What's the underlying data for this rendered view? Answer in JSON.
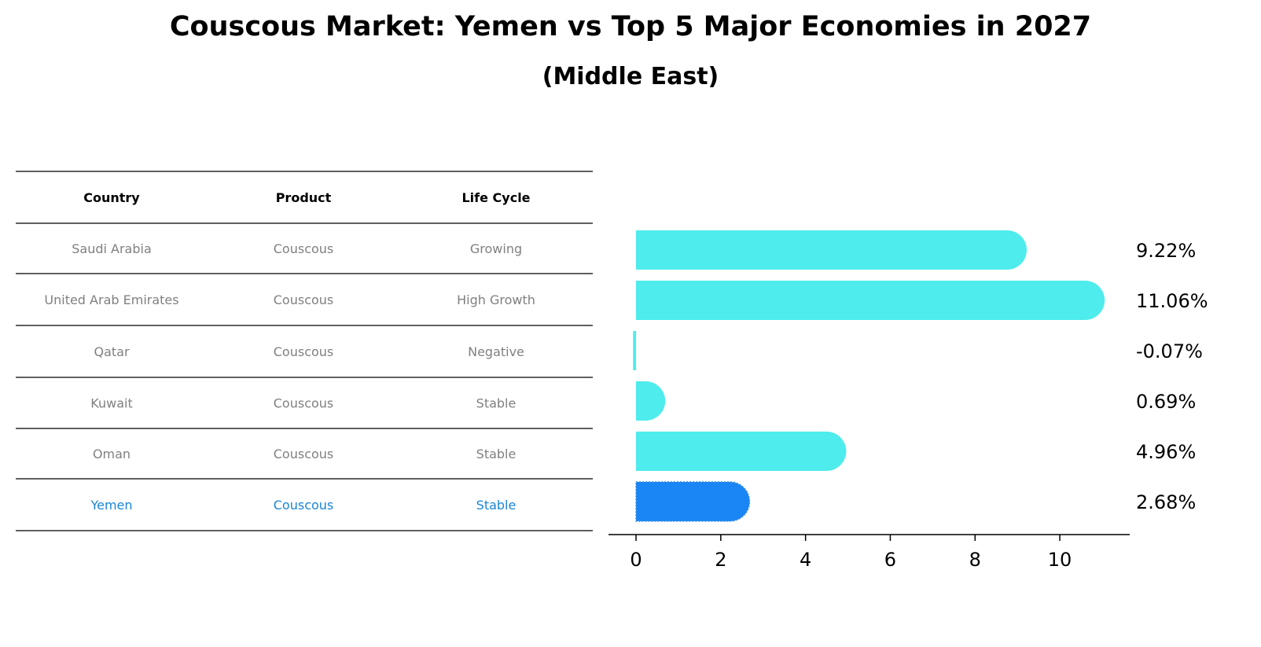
{
  "title": "Couscous Market: Yemen vs Top 5 Major Economies in 2027",
  "subtitle": "(Middle East)",
  "colors": {
    "bar": "#4eecec",
    "highlight": "#1a85f5",
    "muted_text": "#808080",
    "highlight_text": "#1a85d6"
  },
  "table": {
    "headers": [
      "Country",
      "Product",
      "Life Cycle"
    ],
    "rows": [
      [
        "Saudi Arabia",
        "Couscous",
        "Growing"
      ],
      [
        "United Arab Emirates",
        "Couscous",
        "High Growth"
      ],
      [
        "Qatar",
        "Couscous",
        "Negative"
      ],
      [
        "Kuwait",
        "Couscous",
        "Stable"
      ],
      [
        "Oman",
        "Couscous",
        "Stable"
      ],
      [
        "Yemen",
        "Couscous",
        "Stable"
      ]
    ],
    "highlight_row": 5
  },
  "chart_data": {
    "type": "bar",
    "orientation": "horizontal",
    "categories": [
      "Saudi Arabia",
      "United Arab Emirates",
      "Qatar",
      "Kuwait",
      "Oman",
      "Yemen"
    ],
    "values": [
      9.22,
      11.06,
      -0.07,
      0.69,
      4.96,
      2.68
    ],
    "value_labels": [
      "9.22%",
      "11.06%",
      "-0.07%",
      "0.69%",
      "4.96%",
      "2.68%"
    ],
    "highlight": "Yemen",
    "xticks": [
      0,
      2,
      4,
      6,
      8,
      10
    ],
    "xlim": [
      -0.65,
      11.65
    ],
    "xlabel": "",
    "ylabel": ""
  }
}
